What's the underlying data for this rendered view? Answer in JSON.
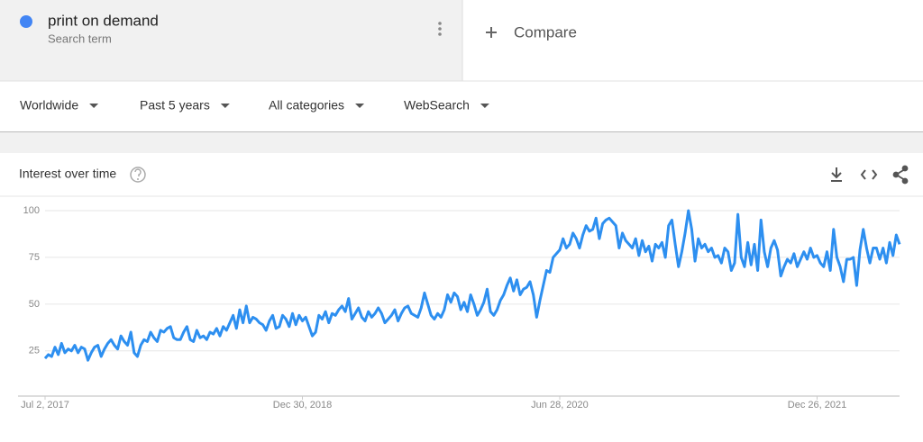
{
  "header": {
    "term": "print on demand",
    "subtitle": "Search term",
    "compare": "Compare"
  },
  "filters": [
    "Worldwide",
    "Past 5 years",
    "All categories",
    "WebSearch"
  ],
  "chart_data": {
    "type": "line",
    "title": "Interest over time",
    "color": "#2d8ff0",
    "grid": true,
    "values": [
      21,
      23,
      22,
      27,
      23,
      29,
      24,
      26,
      25,
      28,
      24,
      27,
      26,
      20,
      24,
      27,
      28,
      22,
      26,
      29,
      31,
      28,
      26,
      33,
      30,
      28,
      35,
      24,
      22,
      28,
      31,
      30,
      35,
      32,
      30,
      36,
      35,
      37,
      38,
      32,
      31,
      31,
      35,
      38,
      31,
      30,
      36,
      32,
      33,
      31,
      35,
      34,
      37,
      33,
      38,
      36,
      40,
      44,
      37,
      47,
      40,
      49,
      40,
      43,
      42,
      40,
      39,
      36,
      41,
      44,
      37,
      38,
      44,
      42,
      38,
      45,
      39,
      44,
      41,
      43,
      38,
      33,
      35,
      44,
      42,
      46,
      40,
      45,
      44,
      47,
      49,
      46,
      53,
      42,
      45,
      48,
      43,
      41,
      46,
      43,
      45,
      48,
      45,
      40,
      42,
      44,
      47,
      41,
      45,
      48,
      49,
      45,
      44,
      43,
      48,
      56,
      50,
      44,
      42,
      45,
      43,
      47,
      55,
      51,
      56,
      54,
      47,
      51,
      46,
      55,
      50,
      44,
      47,
      51,
      58,
      46,
      44,
      47,
      52,
      55,
      60,
      64,
      57,
      63,
      55,
      58,
      59,
      62,
      55,
      43,
      52,
      60,
      68,
      67,
      75,
      77,
      79,
      85,
      80,
      82,
      88,
      85,
      80,
      87,
      92,
      89,
      90,
      96,
      85,
      93,
      95,
      96,
      94,
      92,
      80,
      88,
      84,
      82,
      80,
      85,
      76,
      84,
      78,
      81,
      73,
      82,
      80,
      83,
      75,
      92,
      95,
      82,
      70,
      78,
      88,
      100,
      90,
      73,
      85,
      80,
      82,
      78,
      80,
      75,
      76,
      72,
      80,
      78,
      68,
      72,
      98,
      75,
      70,
      83,
      71,
      82,
      68,
      95,
      78,
      70,
      80,
      84,
      79,
      65,
      70,
      74,
      72,
      77,
      70,
      74,
      78,
      74,
      80,
      75,
      76,
      72,
      70,
      78,
      68,
      90,
      75,
      70,
      62,
      74,
      74,
      75,
      60,
      79,
      90,
      80,
      72,
      80,
      80,
      74,
      80,
      72,
      83,
      76,
      87,
      82
    ],
    "xlim": [
      0,
      259
    ],
    "xticks": [
      {
        "value": 0,
        "label": "Jul 2, 2017"
      },
      {
        "value": 78,
        "label": "Dec 30, 2018"
      },
      {
        "value": 156,
        "label": "Jun 28, 2020"
      },
      {
        "value": 234,
        "label": "Dec 26, 2021"
      }
    ],
    "ylim": [
      0,
      100
    ],
    "yticks": [
      25,
      50,
      75,
      100
    ]
  }
}
